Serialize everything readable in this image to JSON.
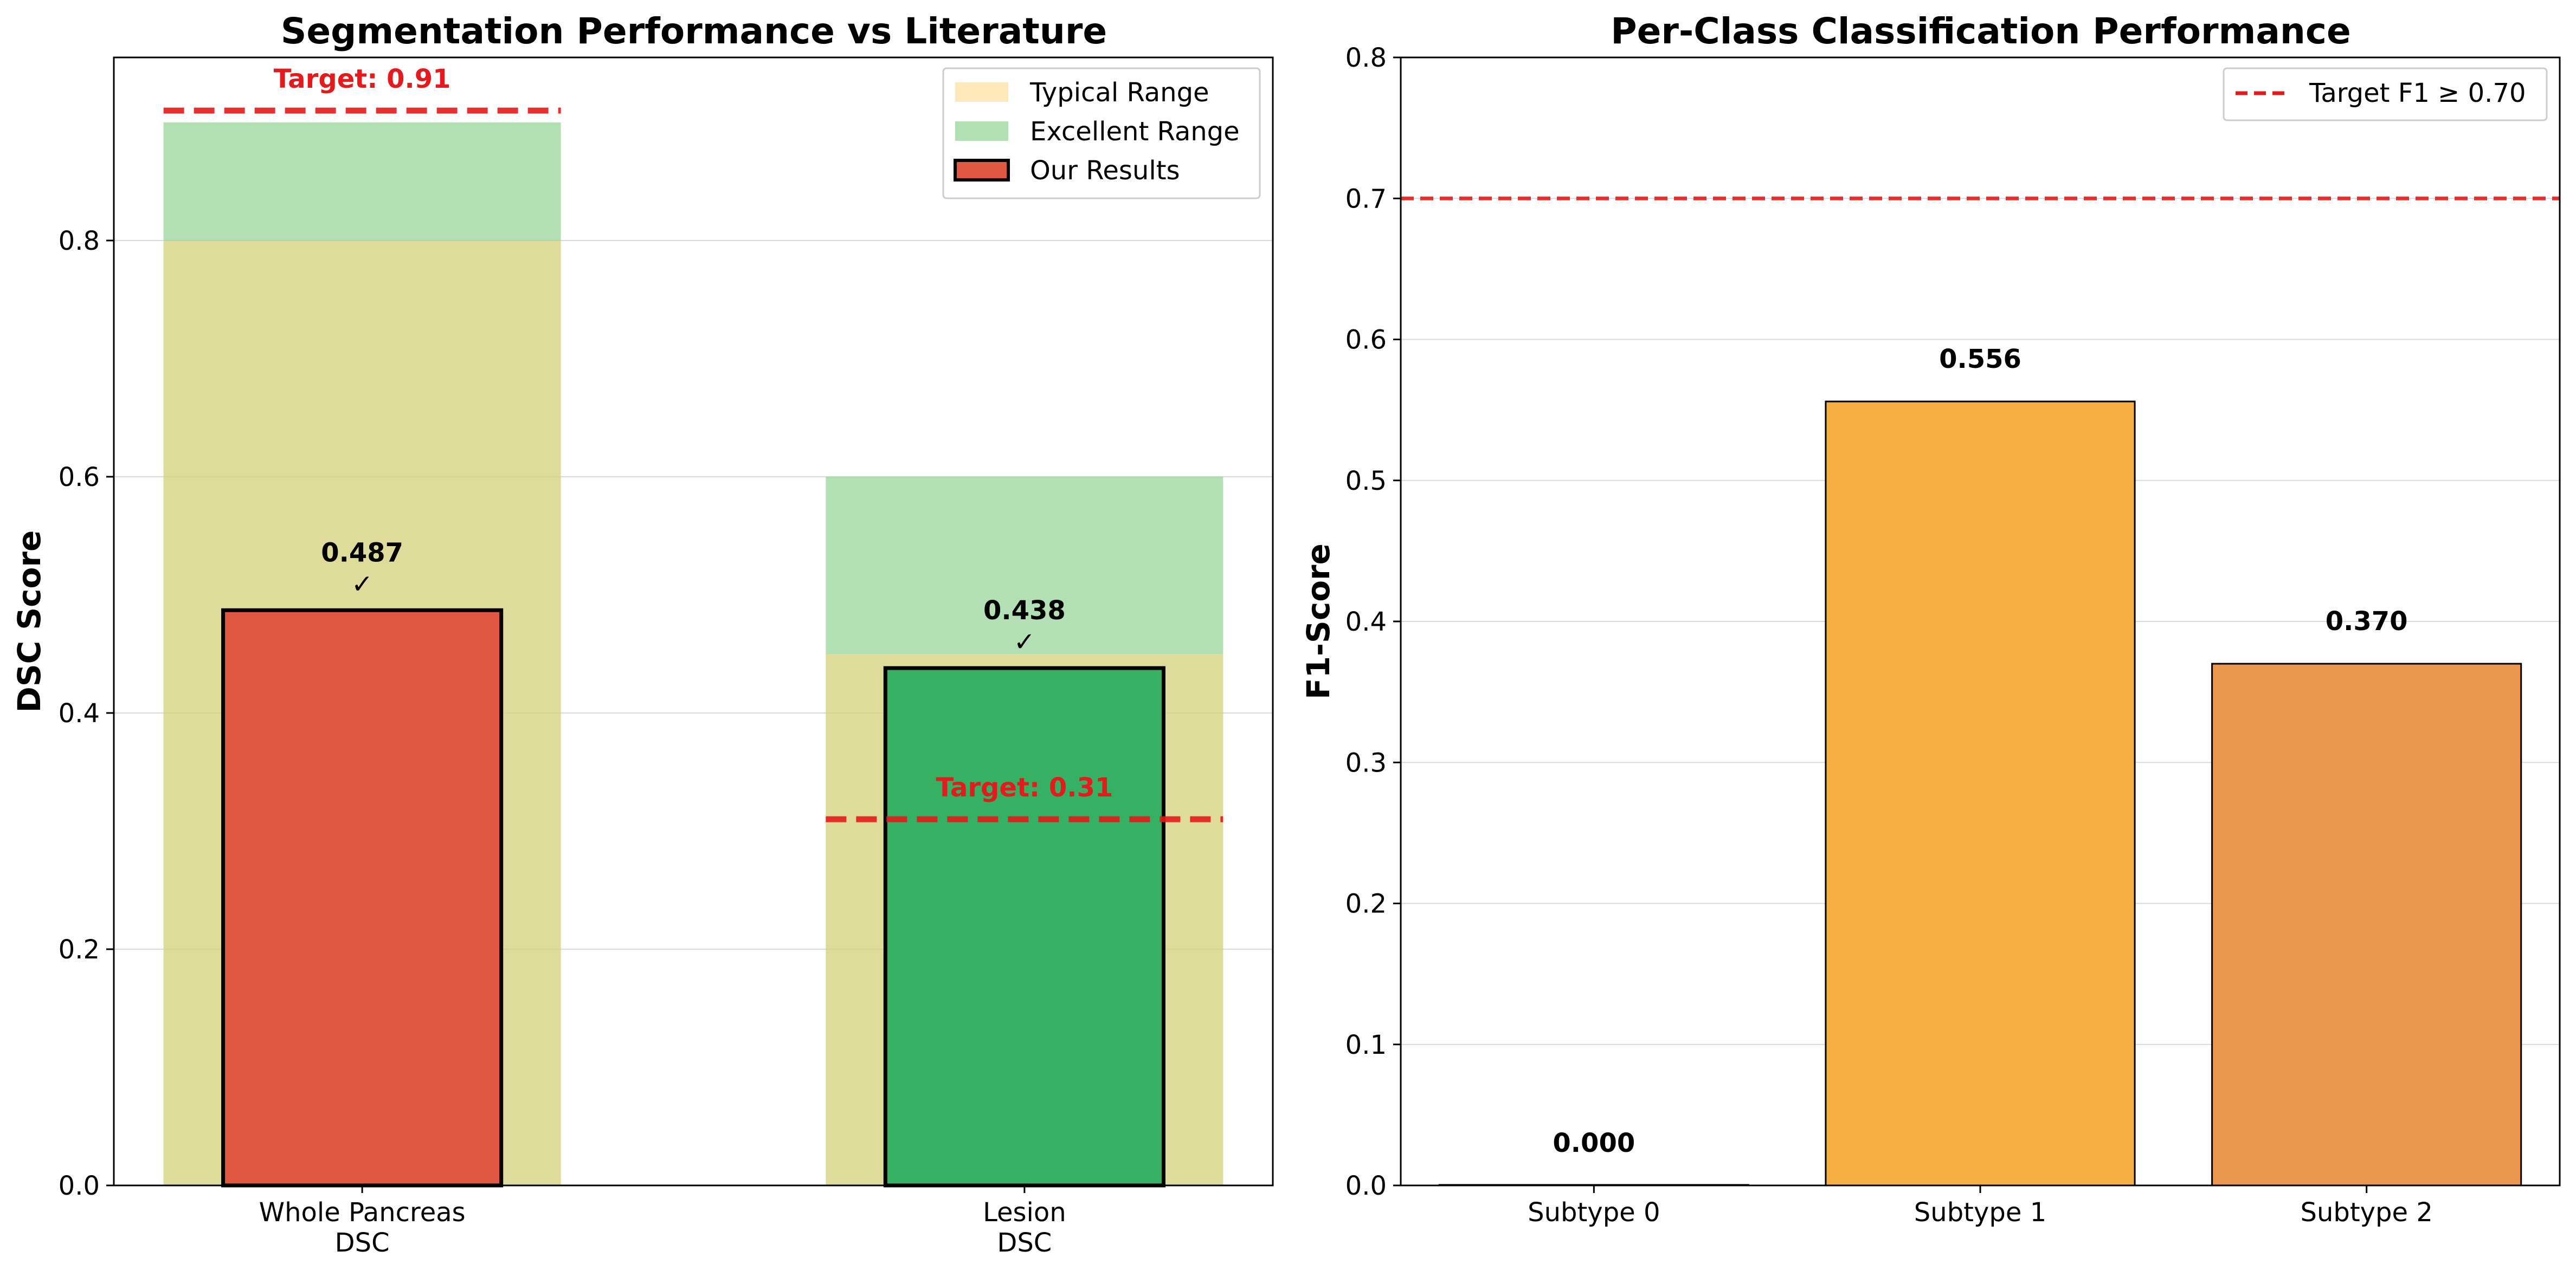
{
  "chart_data": [
    {
      "type": "bar",
      "title": "Segmentation Performance vs Literature",
      "xlabel": "",
      "ylabel": "DSC Score",
      "ylim": [
        0,
        0.955
      ],
      "yticks": [
        "0.0",
        "0.2",
        "0.4",
        "0.6",
        "0.8"
      ],
      "categories": [
        "Whole Pancreas\nDSC",
        "Lesion\nDSC"
      ],
      "series": [
        {
          "name": "Typical Range",
          "ranges": [
            [
              0.0,
              0.8
            ],
            [
              0.0,
              0.45
            ]
          ],
          "color": "#fcd88a"
        },
        {
          "name": "Excellent Range",
          "ranges": [
            [
              0.0,
              0.9
            ],
            [
              0.0,
              0.6
            ]
          ],
          "color": "#74c476"
        },
        {
          "name": "Our Results",
          "values": [
            0.487,
            0.438
          ],
          "colors": [
            "#e05841",
            "#36b062"
          ]
        }
      ],
      "data_labels": [
        "0.487\n✓",
        "0.438\n✓"
      ],
      "targets": [
        {
          "value": 0.91,
          "label": "Target: 0.91"
        },
        {
          "value": 0.31,
          "label": "Target: 0.31"
        }
      ],
      "grid": true,
      "legend": "top-right"
    },
    {
      "type": "bar",
      "title": "Per-Class Classification Performance",
      "xlabel": "",
      "ylabel": "F1-Score",
      "ylim": [
        0,
        0.8
      ],
      "yticks": [
        "0.0",
        "0.1",
        "0.2",
        "0.3",
        "0.4",
        "0.5",
        "0.6",
        "0.7",
        "0.8"
      ],
      "categories": [
        "Subtype 0",
        "Subtype 1",
        "Subtype 2"
      ],
      "values": [
        0.0,
        0.556,
        0.37
      ],
      "data_labels": [
        "0.000",
        "0.556",
        "0.370"
      ],
      "colors": [
        "#c0c0c0",
        "#f5ae42",
        "#e9964f"
      ],
      "reference_line": {
        "name": "Target F1 ≥ 0.70",
        "value": 0.7,
        "color": "#e41a1c"
      },
      "grid": true,
      "legend": "top-right"
    }
  ]
}
